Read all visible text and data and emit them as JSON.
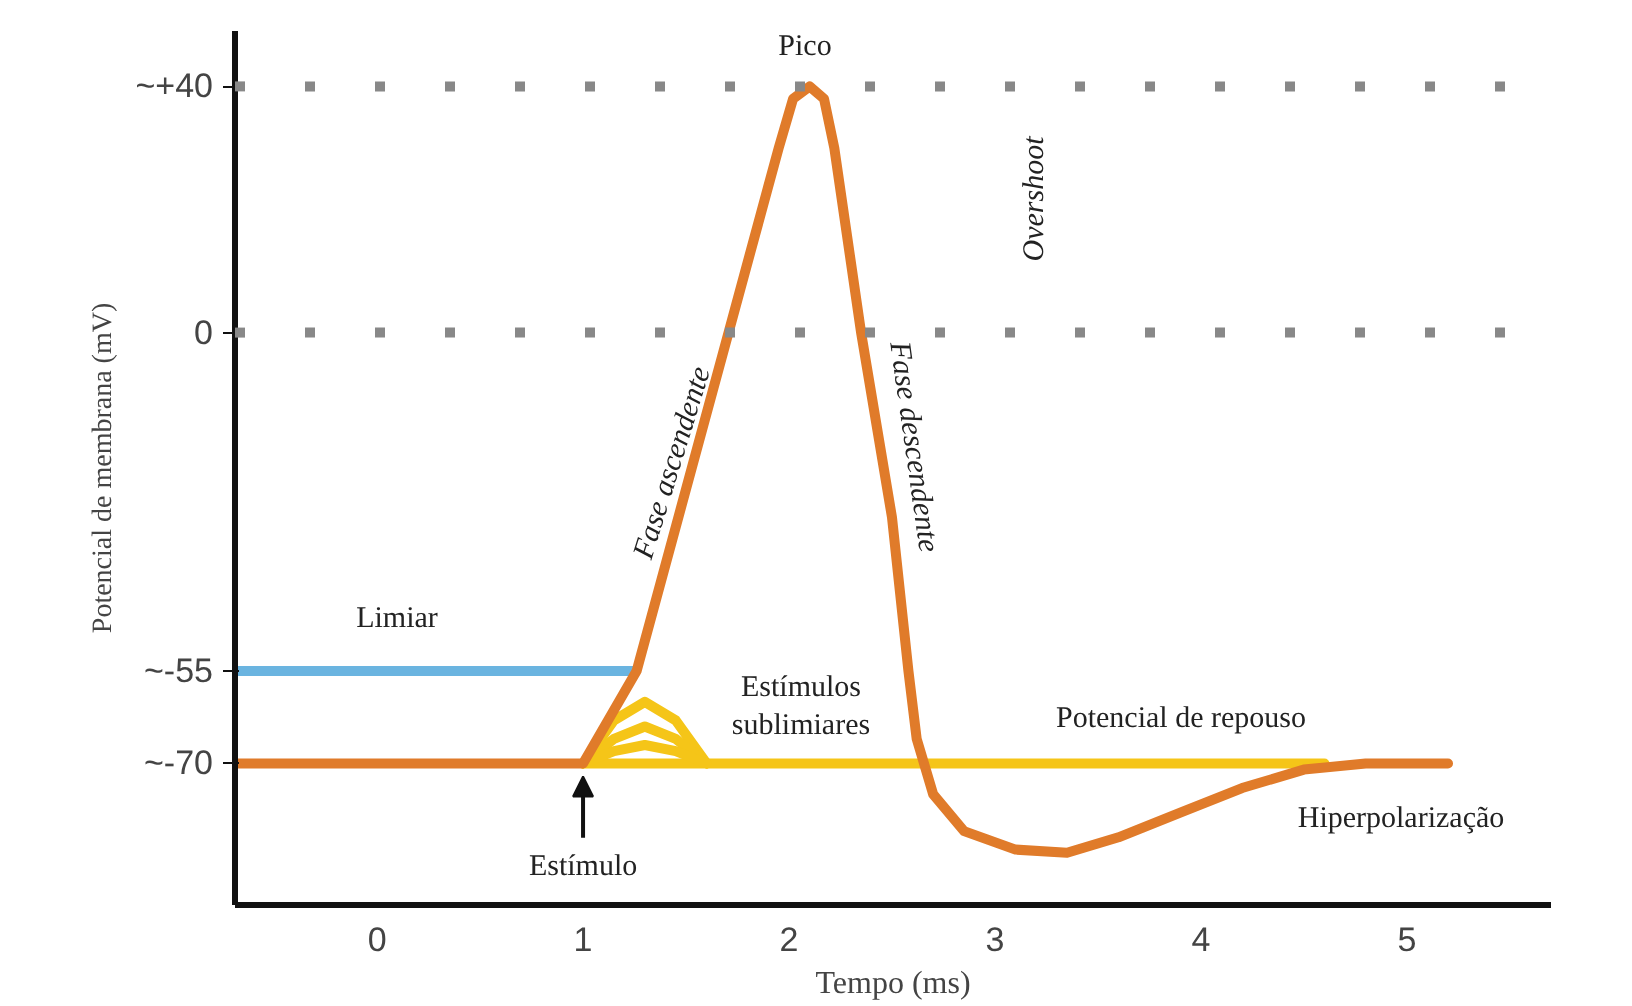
{
  "chart_data": {
    "type": "line",
    "xlabel": "Tempo (ms)",
    "ylabel": "Potencial de membrana (mV)",
    "xlim": [
      -0.69,
      5.7
    ],
    "ylim": [
      -93,
      49
    ],
    "xticks": [
      0,
      1,
      2,
      3,
      4,
      5
    ],
    "yticks": [
      {
        "value": 40,
        "label": "~+40"
      },
      0,
      {
        "value": -55,
        "label": "~-55"
      },
      {
        "value": -70,
        "label": "~-70"
      }
    ],
    "grid": false,
    "line_style": "solid",
    "marker": "none",
    "series": [
      {
        "color": "#f5c518",
        "x": [
          1.0,
          4.6
        ],
        "values": [
          -70,
          -70
        ]
      },
      {
        "color": "#f5c518",
        "x": [
          1.0,
          1.15,
          1.3,
          1.45,
          1.6
        ],
        "values": [
          -70,
          -63,
          -60,
          -63,
          -70
        ]
      },
      {
        "color": "#f5c518",
        "x": [
          1.0,
          1.15,
          1.3,
          1.45,
          1.6
        ],
        "values": [
          -70,
          -66,
          -64,
          -66,
          -70
        ]
      },
      {
        "color": "#f5c518",
        "x": [
          1.0,
          1.15,
          1.3,
          1.45,
          1.6
        ],
        "values": [
          -70,
          -68,
          -67,
          -68,
          -70
        ]
      },
      {
        "color": "#6ab4e0",
        "x": [
          -0.69,
          1.24
        ],
        "values": [
          -55,
          -55
        ]
      },
      {
        "color": "#e07b2a",
        "x": [
          -0.69,
          1.0,
          1.26,
          1.95,
          2.02,
          2.1,
          2.17,
          2.22,
          2.35,
          2.5,
          2.58,
          2.62,
          2.7,
          2.85,
          3.1,
          3.35,
          3.6,
          3.9,
          4.2,
          4.5,
          4.8,
          5.2
        ],
        "values": [
          -70,
          -70,
          -55,
          30,
          38,
          40,
          38,
          30,
          0,
          -30,
          -55,
          -66,
          -75,
          -81,
          -84,
          -84.5,
          -82,
          -78,
          -74,
          -71,
          -70,
          -70
        ]
      }
    ],
    "ref_lines": [
      {
        "axis": "y",
        "value": 40,
        "color": "#888888",
        "line_style": "dotted"
      },
      {
        "axis": "y",
        "value": 0,
        "color": "#888888",
        "line_style": "dotted"
      }
    ],
    "annotations": [
      "Pico",
      "Fase ascendente",
      "Fase descendente",
      "Overshoot",
      "Limiar",
      "Estímulos\nsublimiares",
      "Potencial de repouso",
      "Hiperpolarização",
      {
        "text": "Estímulo",
        "x": 1,
        "y": -70
      }
    ]
  }
}
